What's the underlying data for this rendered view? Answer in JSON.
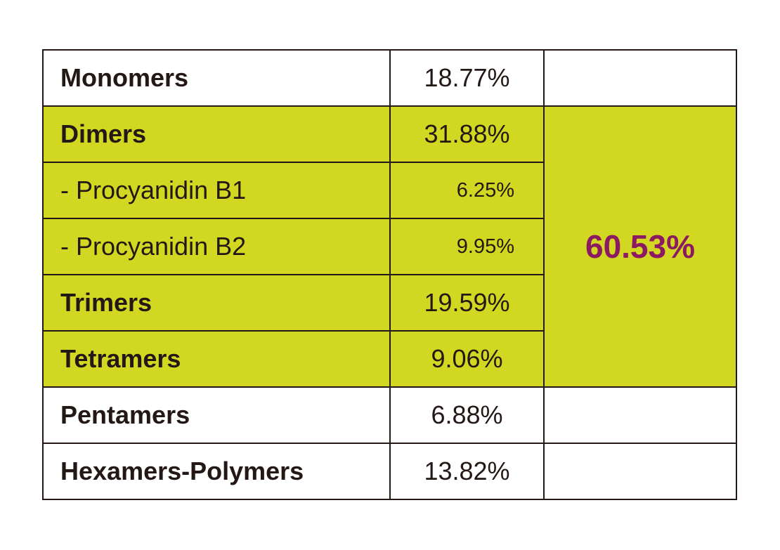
{
  "colors": {
    "highlight": "#d2d721",
    "total_text": "#8b1a62",
    "text": "#231815"
  },
  "rows": [
    {
      "label": "Monomers",
      "value": "18.77%"
    },
    {
      "label": "Dimers",
      "value": "31.88%"
    },
    {
      "label": "- Procyanidin B1",
      "value": "6.25%"
    },
    {
      "label": "- Procyanidin B2",
      "value": "9.95%"
    },
    {
      "label": "Trimers",
      "value": "19.59%"
    },
    {
      "label": "Tetramers",
      "value": "9.06%"
    },
    {
      "label": "Pentamers",
      "value": "6.88%"
    },
    {
      "label": "Hexamers-Polymers",
      "value": "13.82%"
    }
  ],
  "highlight_total": "60.53%"
}
